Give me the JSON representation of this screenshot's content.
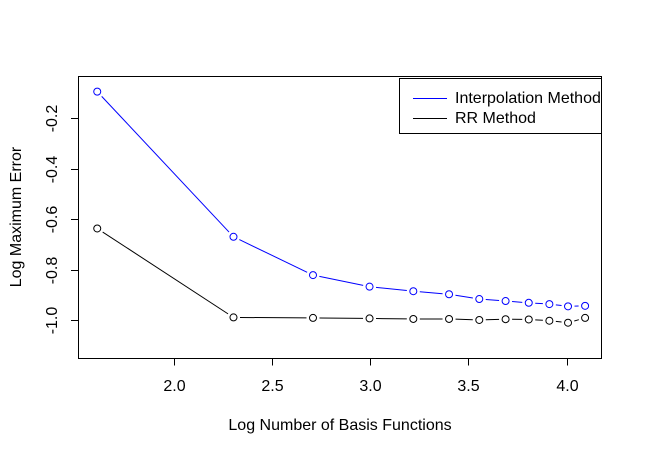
{
  "figure": {
    "background": "#ffffff",
    "border_color": "#000000"
  },
  "chart_data": {
    "type": "line",
    "title": "",
    "xlabel": "Log Number of Basis Functions",
    "ylabel": "Log Maximum Error",
    "xlim": [
      1.511,
      4.175
    ],
    "ylim": [
      -1.151,
      -0.032
    ],
    "x_ticks": {
      "values": [
        2.0,
        2.5,
        3.0,
        3.5,
        4.0
      ],
      "labels": [
        "2.0",
        "2.5",
        "3.0",
        "3.5",
        "4.0"
      ]
    },
    "y_ticks": {
      "values": [
        -0.2,
        -0.4,
        -0.6,
        -0.8,
        -1.0
      ],
      "labels": [
        "-0.2",
        "-0.4",
        "-0.6",
        "-0.8",
        "-1.0"
      ]
    },
    "x": [
      1.609,
      2.303,
      2.708,
      2.996,
      3.219,
      3.401,
      3.555,
      3.689,
      3.807,
      3.912,
      4.007,
      4.094
    ],
    "series": [
      {
        "name": "Interpolation Method",
        "color": "#0000ff",
        "marker": "open-circle",
        "values": [
          -0.094,
          -0.67,
          -0.822,
          -0.868,
          -0.886,
          -0.898,
          -0.917,
          -0.925,
          -0.932,
          -0.937,
          -0.946,
          -0.944
        ]
      },
      {
        "name": "RR Method",
        "color": "#000000",
        "marker": "open-circle",
        "values": [
          -0.637,
          -0.99,
          -0.992,
          -0.994,
          -0.996,
          -0.996,
          -1.0,
          -0.997,
          -0.998,
          -1.003,
          -1.011,
          -0.992
        ]
      }
    ],
    "legend": {
      "position": "top-right"
    },
    "grid": false,
    "line_style": "solid-with-marker-gaps"
  }
}
